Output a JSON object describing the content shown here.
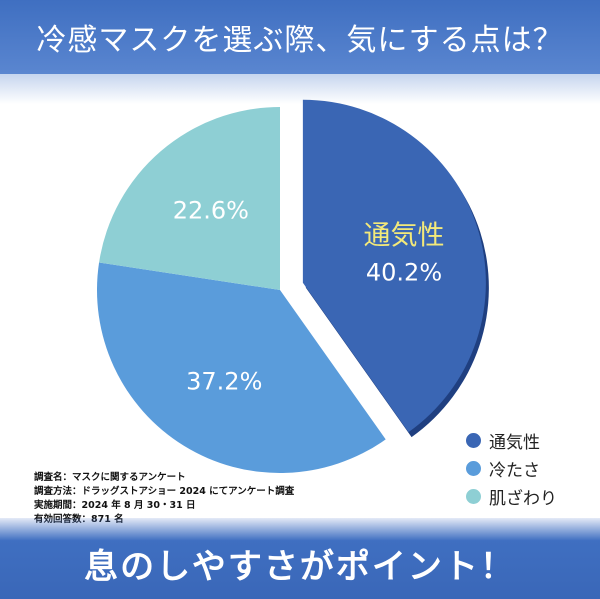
{
  "header": {
    "title": "冷感マスクを選ぶ際、気にする点は？"
  },
  "chart_data": {
    "type": "pie",
    "categories": [
      "通気性",
      "冷たさ",
      "肌ざわり"
    ],
    "values": [
      40.2,
      37.2,
      22.6
    ],
    "value_labels": [
      "40.2%",
      "37.2%",
      "22.6%"
    ],
    "colors": [
      "#3a66b4",
      "#5a9cdb",
      "#8ecfd4"
    ],
    "highlight_color": "#f3e97a",
    "exploded": "通気性",
    "legend_position": "bottom-right"
  },
  "legend": {
    "items": [
      {
        "label": "通気性",
        "color": "#3a66b4"
      },
      {
        "label": "冷たさ",
        "color": "#5a9cdb"
      },
      {
        "label": "肌ざわり",
        "color": "#8ecfd4"
      }
    ]
  },
  "notes": {
    "lines": [
      "調査名：マスクに関するアンケート",
      "調査方法：ドラッグストアショー 2024 にてアンケート調査",
      "実施期間：2024 年 8 月 30・31 日",
      "有効回答数：871 名"
    ]
  },
  "footer": {
    "text": "息のしやすさがポイント！"
  }
}
